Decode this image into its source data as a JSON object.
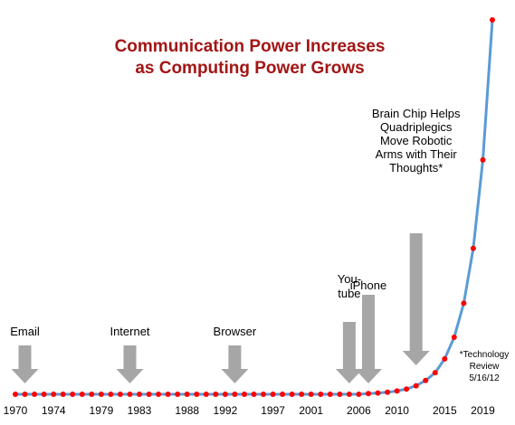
{
  "title_lines": [
    "Communication Power Increases",
    "as Computing Power Grows"
  ],
  "note_lines": [
    "*Technology",
    "Review",
    "5/16/12"
  ],
  "colors": {
    "title": "#a31515",
    "line": "#5b9bd5",
    "marker": "#ff0000",
    "arrow": "#a6a6a6"
  },
  "chart_data": {
    "type": "line",
    "title": "Communication Power Increases as Computing Power Grows",
    "xlabel": "",
    "ylabel": "",
    "x_ticks": [
      "1970",
      "1974",
      "1979",
      "1983",
      "1988",
      "1992",
      "1997",
      "2001",
      "2006",
      "2010",
      "2015",
      "2019"
    ],
    "xlim": [
      1970,
      2020
    ],
    "grid": false,
    "legend": "none",
    "series": [
      {
        "x": [
          1970,
          1971,
          1972,
          1973,
          1974,
          1975,
          1976,
          1977,
          1978,
          1979,
          1980,
          1981,
          1982,
          1983,
          1984,
          1985,
          1986,
          1987,
          1988,
          1989,
          1990,
          1991,
          1992,
          1993,
          1994,
          1995,
          1996,
          1997,
          1998,
          1999,
          2000,
          2001,
          2002,
          2003,
          2004,
          2005,
          2006,
          2007,
          2008,
          2009,
          2010,
          2011,
          2012,
          2013,
          2014,
          2015,
          2016,
          2017,
          2018,
          2019,
          2020
        ],
        "y": [
          0,
          0,
          0,
          0,
          0,
          0,
          0,
          0,
          0,
          0,
          0,
          0,
          0,
          0,
          0,
          0,
          0,
          0,
          0,
          0,
          0,
          0,
          0,
          0,
          0,
          0,
          0,
          0,
          0,
          0,
          0,
          0,
          0,
          0,
          0,
          0,
          0,
          0.1,
          0.2,
          0.3,
          0.5,
          0.8,
          1.3,
          2.1,
          3.3,
          5.4,
          8.7,
          13.9,
          22.3,
          35.8,
          57.2
        ]
      }
    ],
    "annotations": [
      {
        "label_lines": [
          "Email"
        ],
        "x": 1971
      },
      {
        "label_lines": [
          "Internet"
        ],
        "x": 1982
      },
      {
        "label_lines": [
          "Browser"
        ],
        "x": 1993
      },
      {
        "label_lines": [
          "You-",
          "tube"
        ],
        "x": 2005
      },
      {
        "label_lines": [
          "iPhone"
        ],
        "x": 2007
      },
      {
        "label_lines": [
          "Brain Chip Helps",
          "Quadriplegics",
          "Move Robotic",
          "Arms with Their",
          "Thoughts*"
        ],
        "x": 2012
      }
    ]
  }
}
